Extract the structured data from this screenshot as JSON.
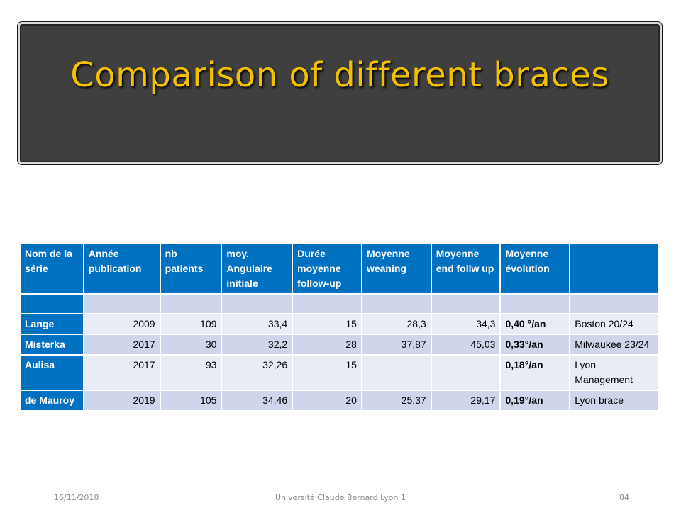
{
  "slide": {
    "title": "Comparison of different braces"
  },
  "table": {
    "headers": [
      "Nom de la série",
      "Année publication",
      "nb patients",
      "moy. Angulaire initiale",
      "Durée moyenne follow-up",
      "Moyenne weaning",
      "Moyenne end follw up",
      "Moyenne évolution",
      ""
    ],
    "rows": [
      [
        "Lange",
        "2009",
        "109",
        "33,4",
        "15",
        "28,3",
        "34,3",
        "0,40 °/an",
        "Boston 20/24"
      ],
      [
        "Misterka",
        "2017",
        "30",
        "32,2",
        "28",
        "37,87",
        "45,03",
        "0,33°/an",
        "Milwaukee 23/24"
      ],
      [
        "Aulisa",
        "2017",
        "93",
        "32,26",
        "15",
        "",
        "",
        "0,18°/an",
        "Lyon Management"
      ],
      [
        "de Mauroy",
        "2019",
        "105",
        "34,46",
        "20",
        "25,37",
        "29,17",
        "0,19°/an",
        "Lyon brace"
      ]
    ]
  },
  "footer": {
    "date": "16/11/2018",
    "institution": "Université Claude Bernard Lyon 1",
    "page": "84"
  }
}
